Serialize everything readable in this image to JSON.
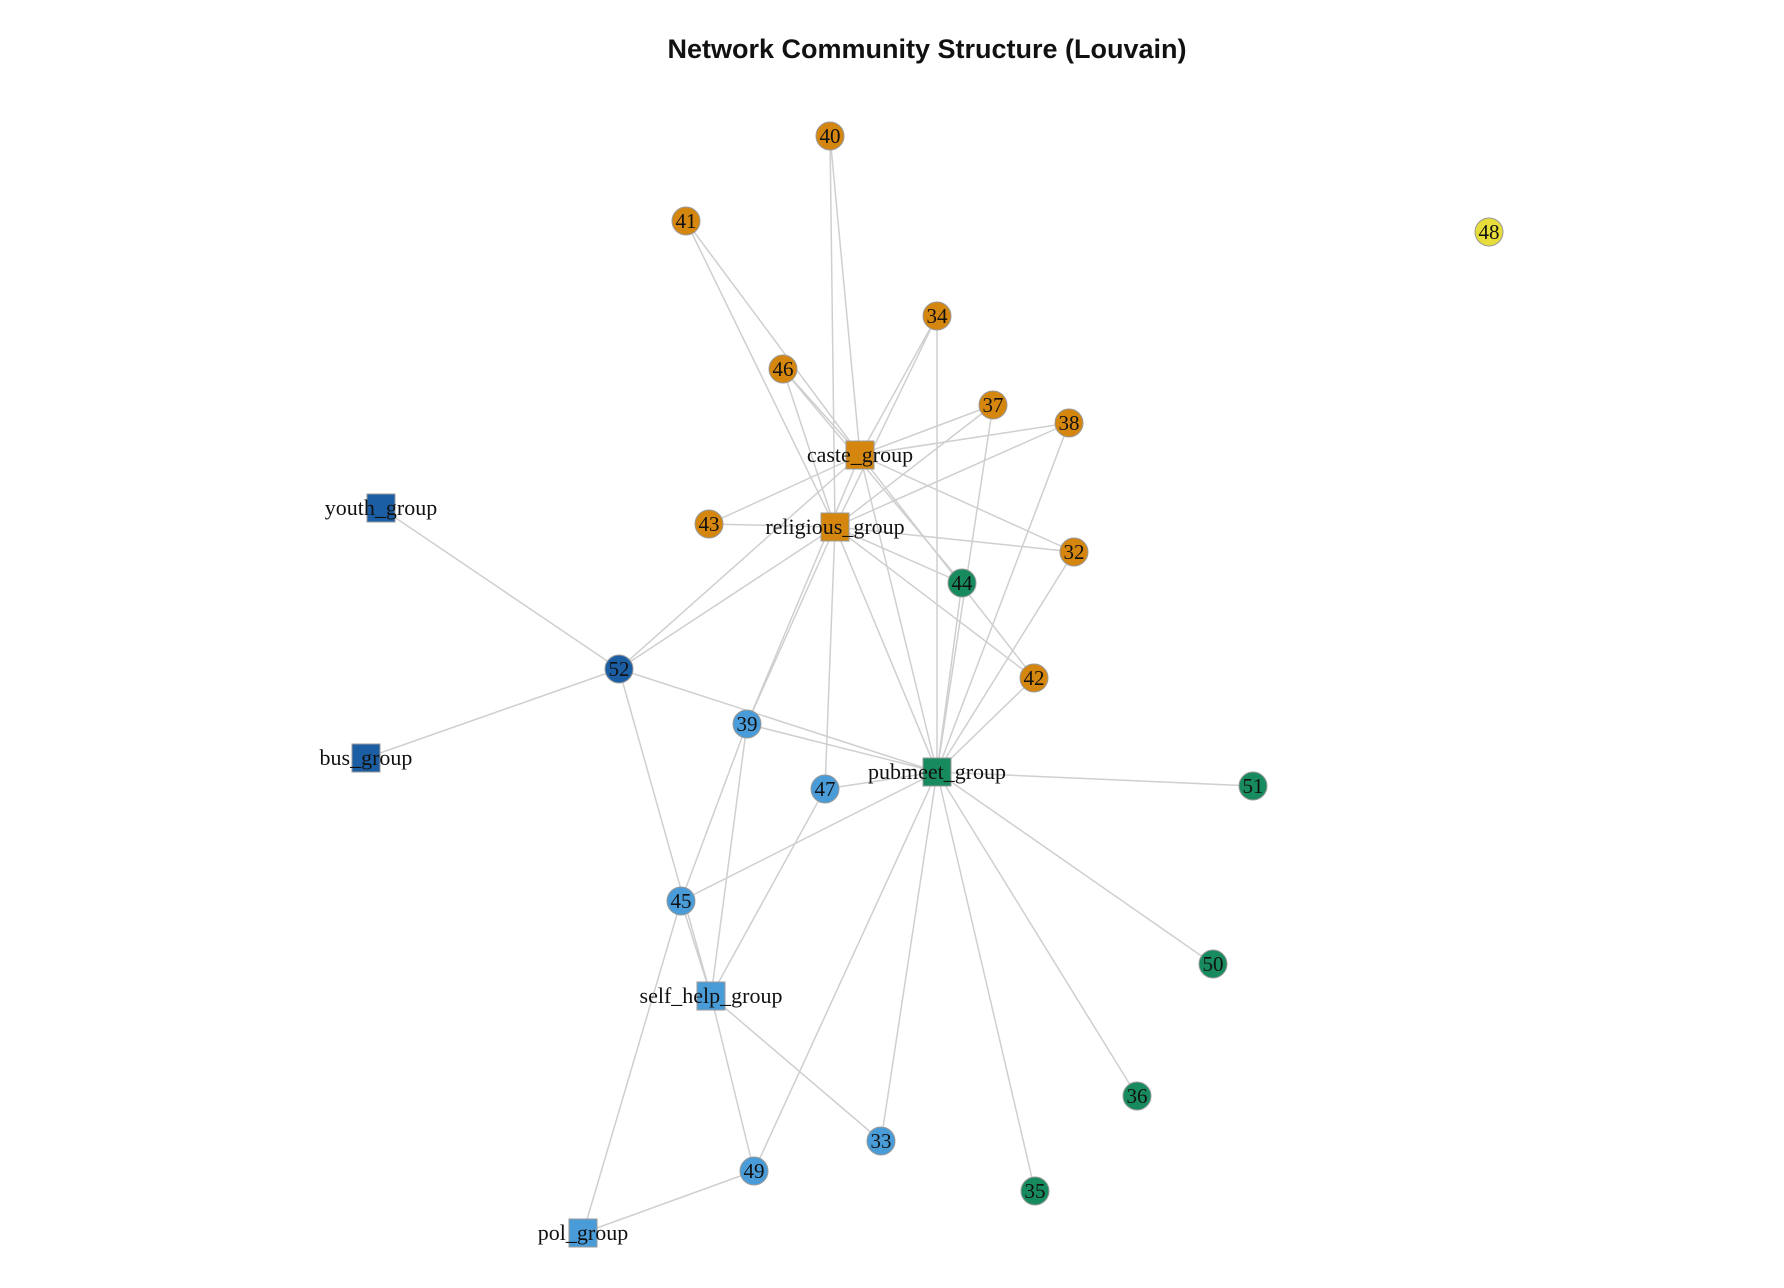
{
  "title": "Network Community Structure (Louvain)",
  "communities": {
    "orange": "#d4860f",
    "green": "#178a5e",
    "lightblue": "#4a9cd8",
    "darkblue": "#1c5ea3",
    "yellow": "#e6dd3b"
  },
  "nodes": [
    {
      "id": "40",
      "label": "40",
      "type": "person",
      "community": "orange"
    },
    {
      "id": "41",
      "label": "41",
      "type": "person",
      "community": "orange"
    },
    {
      "id": "34",
      "label": "34",
      "type": "person",
      "community": "orange"
    },
    {
      "id": "46",
      "label": "46",
      "type": "person",
      "community": "orange"
    },
    {
      "id": "37",
      "label": "37",
      "type": "person",
      "community": "orange"
    },
    {
      "id": "38",
      "label": "38",
      "type": "person",
      "community": "orange"
    },
    {
      "id": "43",
      "label": "43",
      "type": "person",
      "community": "orange"
    },
    {
      "id": "32",
      "label": "32",
      "type": "person",
      "community": "orange"
    },
    {
      "id": "42",
      "label": "42",
      "type": "person",
      "community": "orange"
    },
    {
      "id": "caste_group",
      "label": "caste_group",
      "type": "group",
      "community": "orange"
    },
    {
      "id": "religious_group",
      "label": "religious_group",
      "type": "group",
      "community": "orange"
    },
    {
      "id": "48",
      "label": "48",
      "type": "person",
      "community": "yellow"
    },
    {
      "id": "44",
      "label": "44",
      "type": "person",
      "community": "green"
    },
    {
      "id": "51",
      "label": "51",
      "type": "person",
      "community": "green"
    },
    {
      "id": "50",
      "label": "50",
      "type": "person",
      "community": "green"
    },
    {
      "id": "36",
      "label": "36",
      "type": "person",
      "community": "green"
    },
    {
      "id": "35",
      "label": "35",
      "type": "person",
      "community": "green"
    },
    {
      "id": "pubmeet_group",
      "label": "pubmeet_group",
      "type": "group",
      "community": "green"
    },
    {
      "id": "52",
      "label": "52",
      "type": "person",
      "community": "darkblue"
    },
    {
      "id": "youth_group",
      "label": "youth_group",
      "type": "group",
      "community": "darkblue"
    },
    {
      "id": "bus_group",
      "label": "bus_group",
      "type": "group",
      "community": "darkblue"
    },
    {
      "id": "39",
      "label": "39",
      "type": "person",
      "community": "lightblue"
    },
    {
      "id": "47",
      "label": "47",
      "type": "person",
      "community": "lightblue"
    },
    {
      "id": "45",
      "label": "45",
      "type": "person",
      "community": "lightblue"
    },
    {
      "id": "33",
      "label": "33",
      "type": "person",
      "community": "lightblue"
    },
    {
      "id": "49",
      "label": "49",
      "type": "person",
      "community": "lightblue"
    },
    {
      "id": "self_help_group",
      "label": "self_help_group",
      "type": "group",
      "community": "lightblue"
    },
    {
      "id": "pol_group",
      "label": "pol_group",
      "type": "group",
      "community": "lightblue"
    }
  ],
  "edges": [
    [
      "40",
      "caste_group"
    ],
    [
      "40",
      "religious_group"
    ],
    [
      "41",
      "caste_group"
    ],
    [
      "41",
      "religious_group"
    ],
    [
      "34",
      "caste_group"
    ],
    [
      "34",
      "religious_group"
    ],
    [
      "34",
      "pubmeet_group"
    ],
    [
      "46",
      "caste_group"
    ],
    [
      "46",
      "religious_group"
    ],
    [
      "46",
      "44"
    ],
    [
      "37",
      "caste_group"
    ],
    [
      "37",
      "religious_group"
    ],
    [
      "37",
      "pubmeet_group"
    ],
    [
      "38",
      "caste_group"
    ],
    [
      "38",
      "religious_group"
    ],
    [
      "38",
      "pubmeet_group"
    ],
    [
      "43",
      "caste_group"
    ],
    [
      "43",
      "religious_group"
    ],
    [
      "32",
      "caste_group"
    ],
    [
      "32",
      "religious_group"
    ],
    [
      "32",
      "pubmeet_group"
    ],
    [
      "42",
      "caste_group"
    ],
    [
      "42",
      "religious_group"
    ],
    [
      "42",
      "pubmeet_group"
    ],
    [
      "44",
      "religious_group"
    ],
    [
      "44",
      "pubmeet_group"
    ],
    [
      "52",
      "youth_group"
    ],
    [
      "52",
      "bus_group"
    ],
    [
      "52",
      "caste_group"
    ],
    [
      "52",
      "religious_group"
    ],
    [
      "52",
      "pubmeet_group"
    ],
    [
      "52",
      "self_help_group"
    ],
    [
      "39",
      "caste_group"
    ],
    [
      "39",
      "religious_group"
    ],
    [
      "39",
      "pubmeet_group"
    ],
    [
      "39",
      "45"
    ],
    [
      "39",
      "self_help_group"
    ],
    [
      "47",
      "religious_group"
    ],
    [
      "47",
      "pubmeet_group"
    ],
    [
      "47",
      "self_help_group"
    ],
    [
      "45",
      "pubmeet_group"
    ],
    [
      "45",
      "self_help_group"
    ],
    [
      "45",
      "pol_group"
    ],
    [
      "33",
      "pubmeet_group"
    ],
    [
      "33",
      "self_help_group"
    ],
    [
      "49",
      "pubmeet_group"
    ],
    [
      "49",
      "self_help_group"
    ],
    [
      "49",
      "pol_group"
    ],
    [
      "51",
      "pubmeet_group"
    ],
    [
      "50",
      "pubmeet_group"
    ],
    [
      "36",
      "pubmeet_group"
    ],
    [
      "35",
      "pubmeet_group"
    ],
    [
      "religious_group",
      "pubmeet_group"
    ],
    [
      "caste_group",
      "pubmeet_group"
    ]
  ]
}
